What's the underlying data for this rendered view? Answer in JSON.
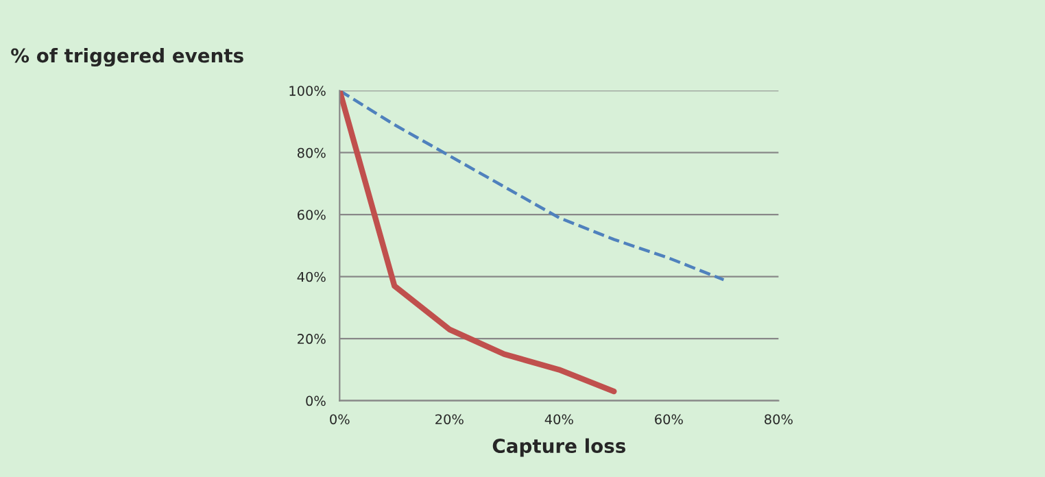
{
  "chart_data": {
    "type": "line",
    "ylabel": "% of triggered events",
    "xlabel": "Capture loss",
    "x": [
      0,
      10,
      20,
      30,
      40,
      50,
      60,
      70
    ],
    "series": [
      {
        "color": "#4f81bd",
        "line_style": "dashed",
        "values": [
          100,
          89,
          79,
          69,
          59,
          52,
          46,
          39
        ]
      },
      {
        "color": "#c0504d",
        "line_style": "solid",
        "values": [
          100,
          37,
          23,
          15,
          10,
          3,
          null,
          null
        ]
      }
    ],
    "xlim": [
      0,
      80
    ],
    "xticks": [
      {
        "value": 0,
        "label": "0%"
      },
      {
        "value": 20,
        "label": "20%"
      },
      {
        "value": 40,
        "label": "40%"
      },
      {
        "value": 60,
        "label": "60%"
      },
      {
        "value": 80,
        "label": "80%"
      }
    ],
    "ylim": [
      0,
      100
    ],
    "yticks": [
      {
        "value": 0,
        "label": "0%"
      },
      {
        "value": 20,
        "label": "20%"
      },
      {
        "value": 40,
        "label": "40%"
      },
      {
        "value": 60,
        "label": "60%"
      },
      {
        "value": 80,
        "label": "80%"
      },
      {
        "value": 100,
        "label": "100%"
      }
    ],
    "grid": "y",
    "marker": "none"
  }
}
